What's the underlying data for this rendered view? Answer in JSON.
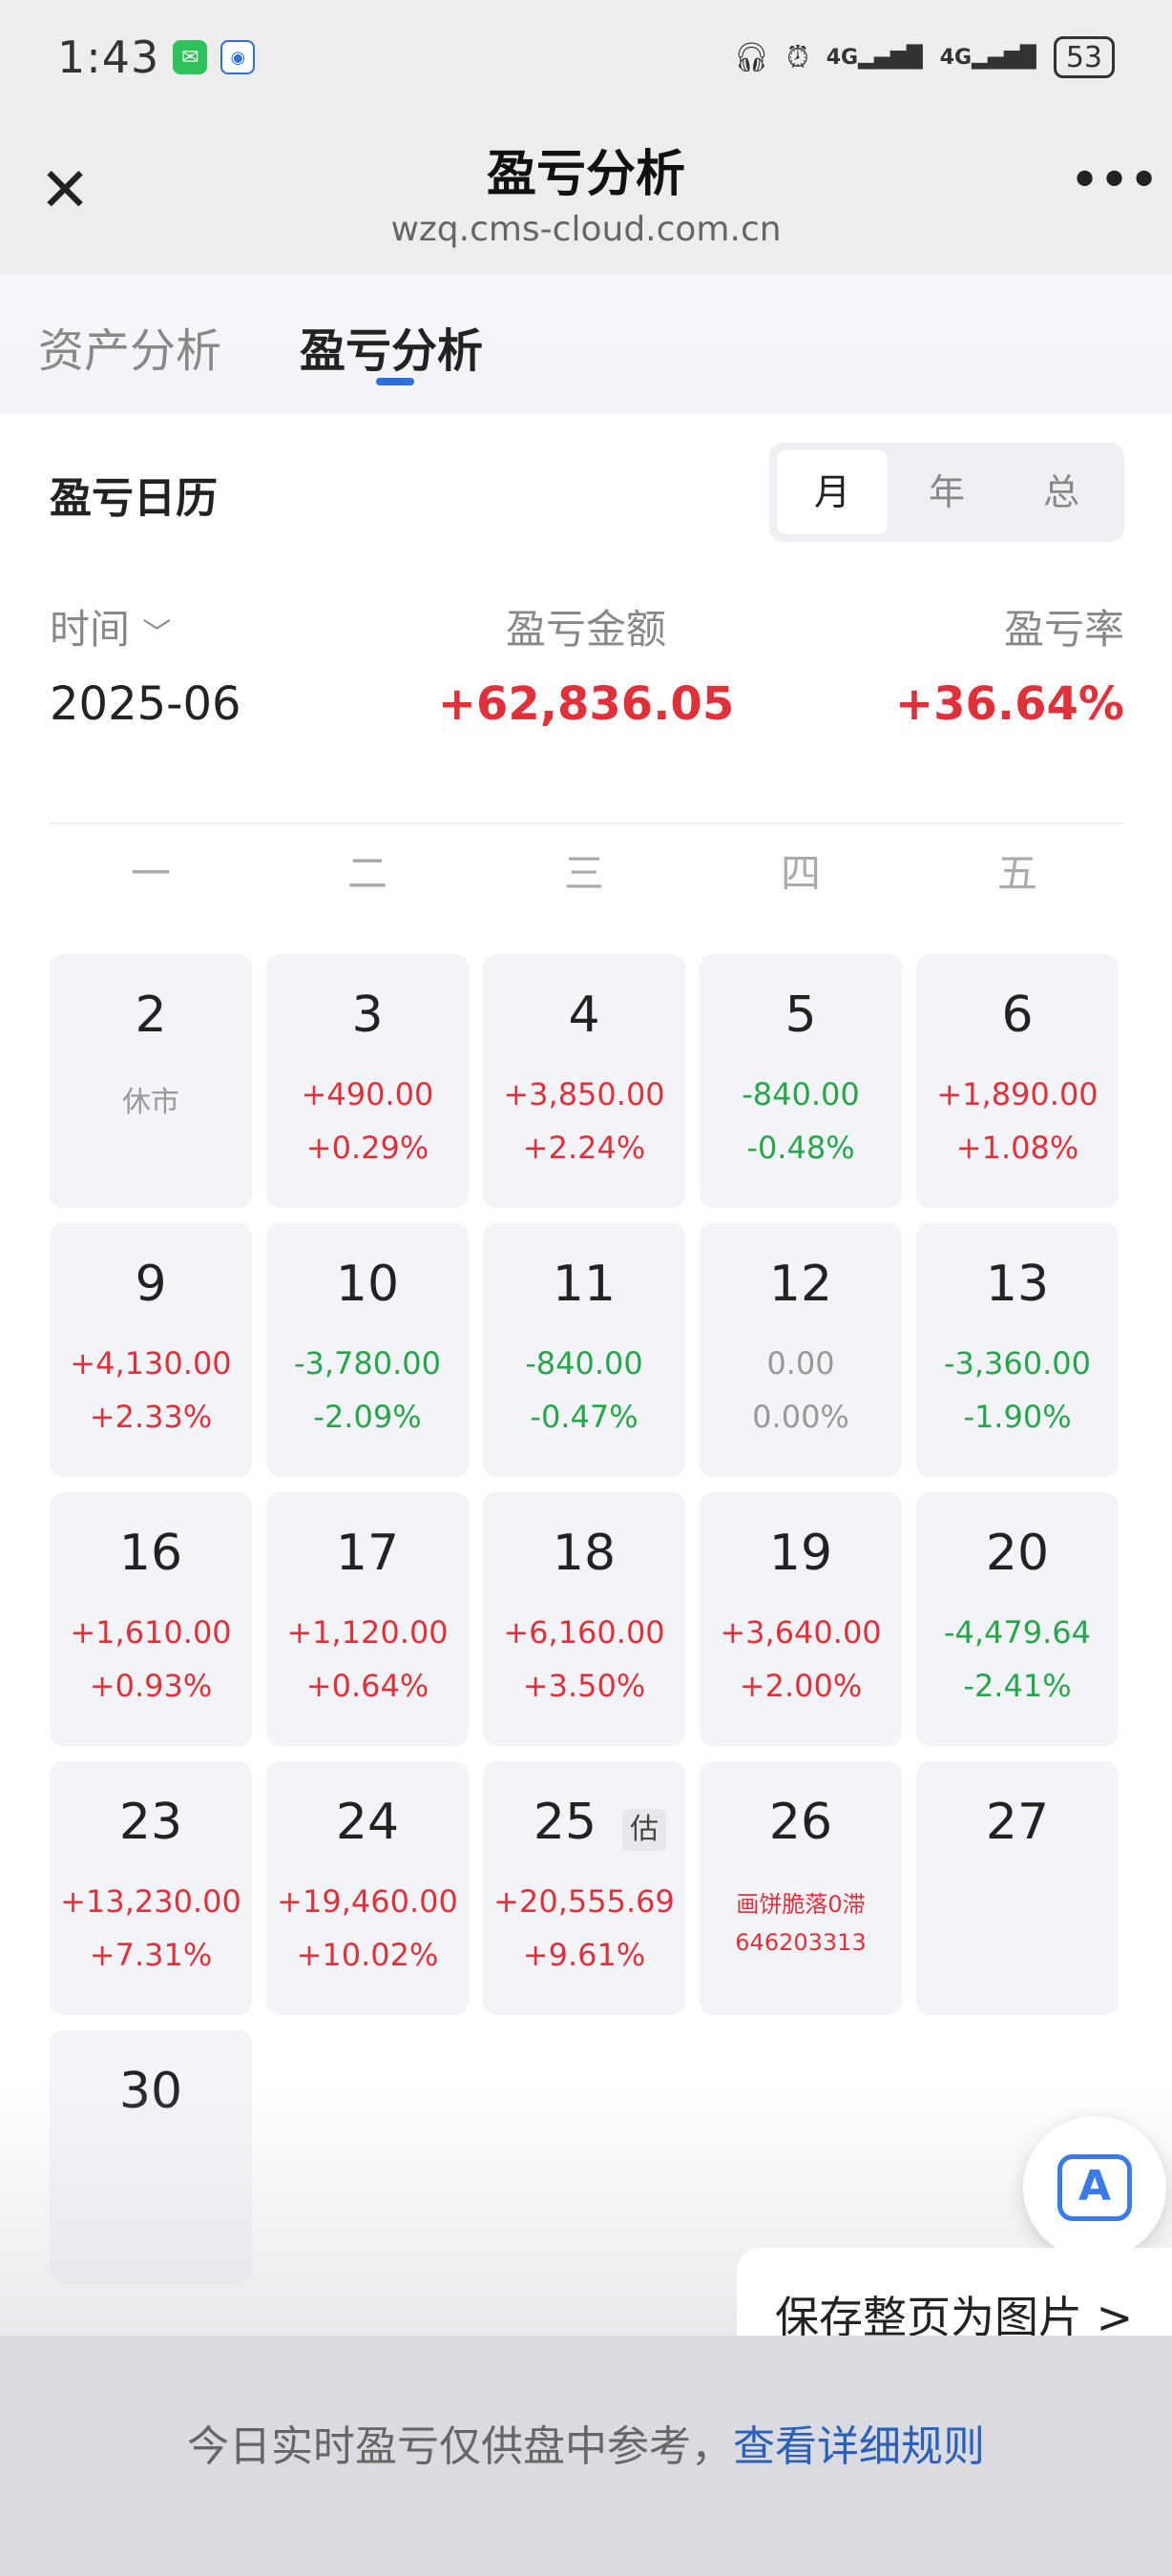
{
  "status_bar": {
    "time": "1:43",
    "network_1": "4G",
    "network_2": "4G",
    "battery": "53"
  },
  "titlebar": {
    "title": "盈亏分析",
    "url": "wzq.cms-cloud.com.cn"
  },
  "tabs": [
    "资产分析",
    "盈亏分析"
  ],
  "active_tab": "盈亏分析",
  "calendar": {
    "title": "盈亏日历",
    "period_options": [
      "月",
      "年",
      "总"
    ],
    "active_period": "月",
    "header": {
      "time_label": "时间",
      "amount_label": "盈亏金额",
      "rate_label": "盈亏率",
      "time_value": "2025-06",
      "amount_value": "+62,836.05",
      "rate_value": "+36.64%"
    },
    "weekdays": [
      "一",
      "二",
      "三",
      "四",
      "五"
    ],
    "days": [
      {
        "day": "2",
        "note": "休市"
      },
      {
        "day": "3",
        "amount": "+490.00",
        "pct": "+0.29%",
        "trend": "up"
      },
      {
        "day": "4",
        "amount": "+3,850.00",
        "pct": "+2.24%",
        "trend": "up"
      },
      {
        "day": "5",
        "amount": "-840.00",
        "pct": "-0.48%",
        "trend": "down"
      },
      {
        "day": "6",
        "amount": "+1,890.00",
        "pct": "+1.08%",
        "trend": "up"
      },
      {
        "day": "9",
        "amount": "+4,130.00",
        "pct": "+2.33%",
        "trend": "up"
      },
      {
        "day": "10",
        "amount": "-3,780.00",
        "pct": "-2.09%",
        "trend": "down"
      },
      {
        "day": "11",
        "amount": "-840.00",
        "pct": "-0.47%",
        "trend": "down"
      },
      {
        "day": "12",
        "amount": "0.00",
        "pct": "0.00%",
        "trend": "flat"
      },
      {
        "day": "13",
        "amount": "-3,360.00",
        "pct": "-1.90%",
        "trend": "down"
      },
      {
        "day": "16",
        "amount": "+1,610.00",
        "pct": "+0.93%",
        "trend": "up"
      },
      {
        "day": "17",
        "amount": "+1,120.00",
        "pct": "+0.64%",
        "trend": "up"
      },
      {
        "day": "18",
        "amount": "+6,160.00",
        "pct": "+3.50%",
        "trend": "up"
      },
      {
        "day": "19",
        "amount": "+3,640.00",
        "pct": "+2.00%",
        "trend": "up"
      },
      {
        "day": "20",
        "amount": "-4,479.64",
        "pct": "-2.41%",
        "trend": "down"
      },
      {
        "day": "23",
        "amount": "+13,230.00",
        "pct": "+7.31%",
        "trend": "up"
      },
      {
        "day": "24",
        "amount": "+19,460.00",
        "pct": "+10.02%",
        "trend": "up"
      },
      {
        "day": "25",
        "amount": "+20,555.69",
        "pct": "+9.61%",
        "trend": "up",
        "badge": "估"
      },
      {
        "day": "26",
        "watermark_1": "画饼脆落0滞",
        "watermark_2": "646203313"
      },
      {
        "day": "27"
      },
      {
        "day": "30"
      }
    ]
  },
  "floating": {
    "scan_icon_label": "A",
    "save_page": "保存整页为图片 >"
  },
  "footer": {
    "text": "今日实时盈亏仅供盘中参考，",
    "link": "查看详细规则"
  },
  "colors": {
    "up": "#e0313a",
    "down": "#26a64a",
    "flat": "#999999",
    "accent": "#2b6fe0"
  }
}
